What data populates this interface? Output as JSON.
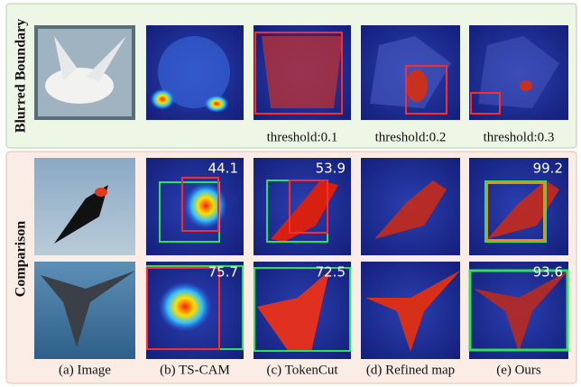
{
  "top_panel": {
    "label": "Blurred Boundary",
    "thresholds": [
      "threshold:0.1",
      "threshold:0.2",
      "threshold:0.3"
    ]
  },
  "bottom_panel": {
    "label": "Comparison",
    "rows": [
      {
        "scores": [
          44.1,
          53.9,
          99.2
        ]
      },
      {
        "scores": [
          75.7,
          72.5,
          93.6
        ]
      }
    ]
  },
  "captions": [
    "(a) Image",
    "(b) TS-CAM",
    "(c) TokenCut",
    "(d) Refined map",
    "(e) Ours"
  ]
}
